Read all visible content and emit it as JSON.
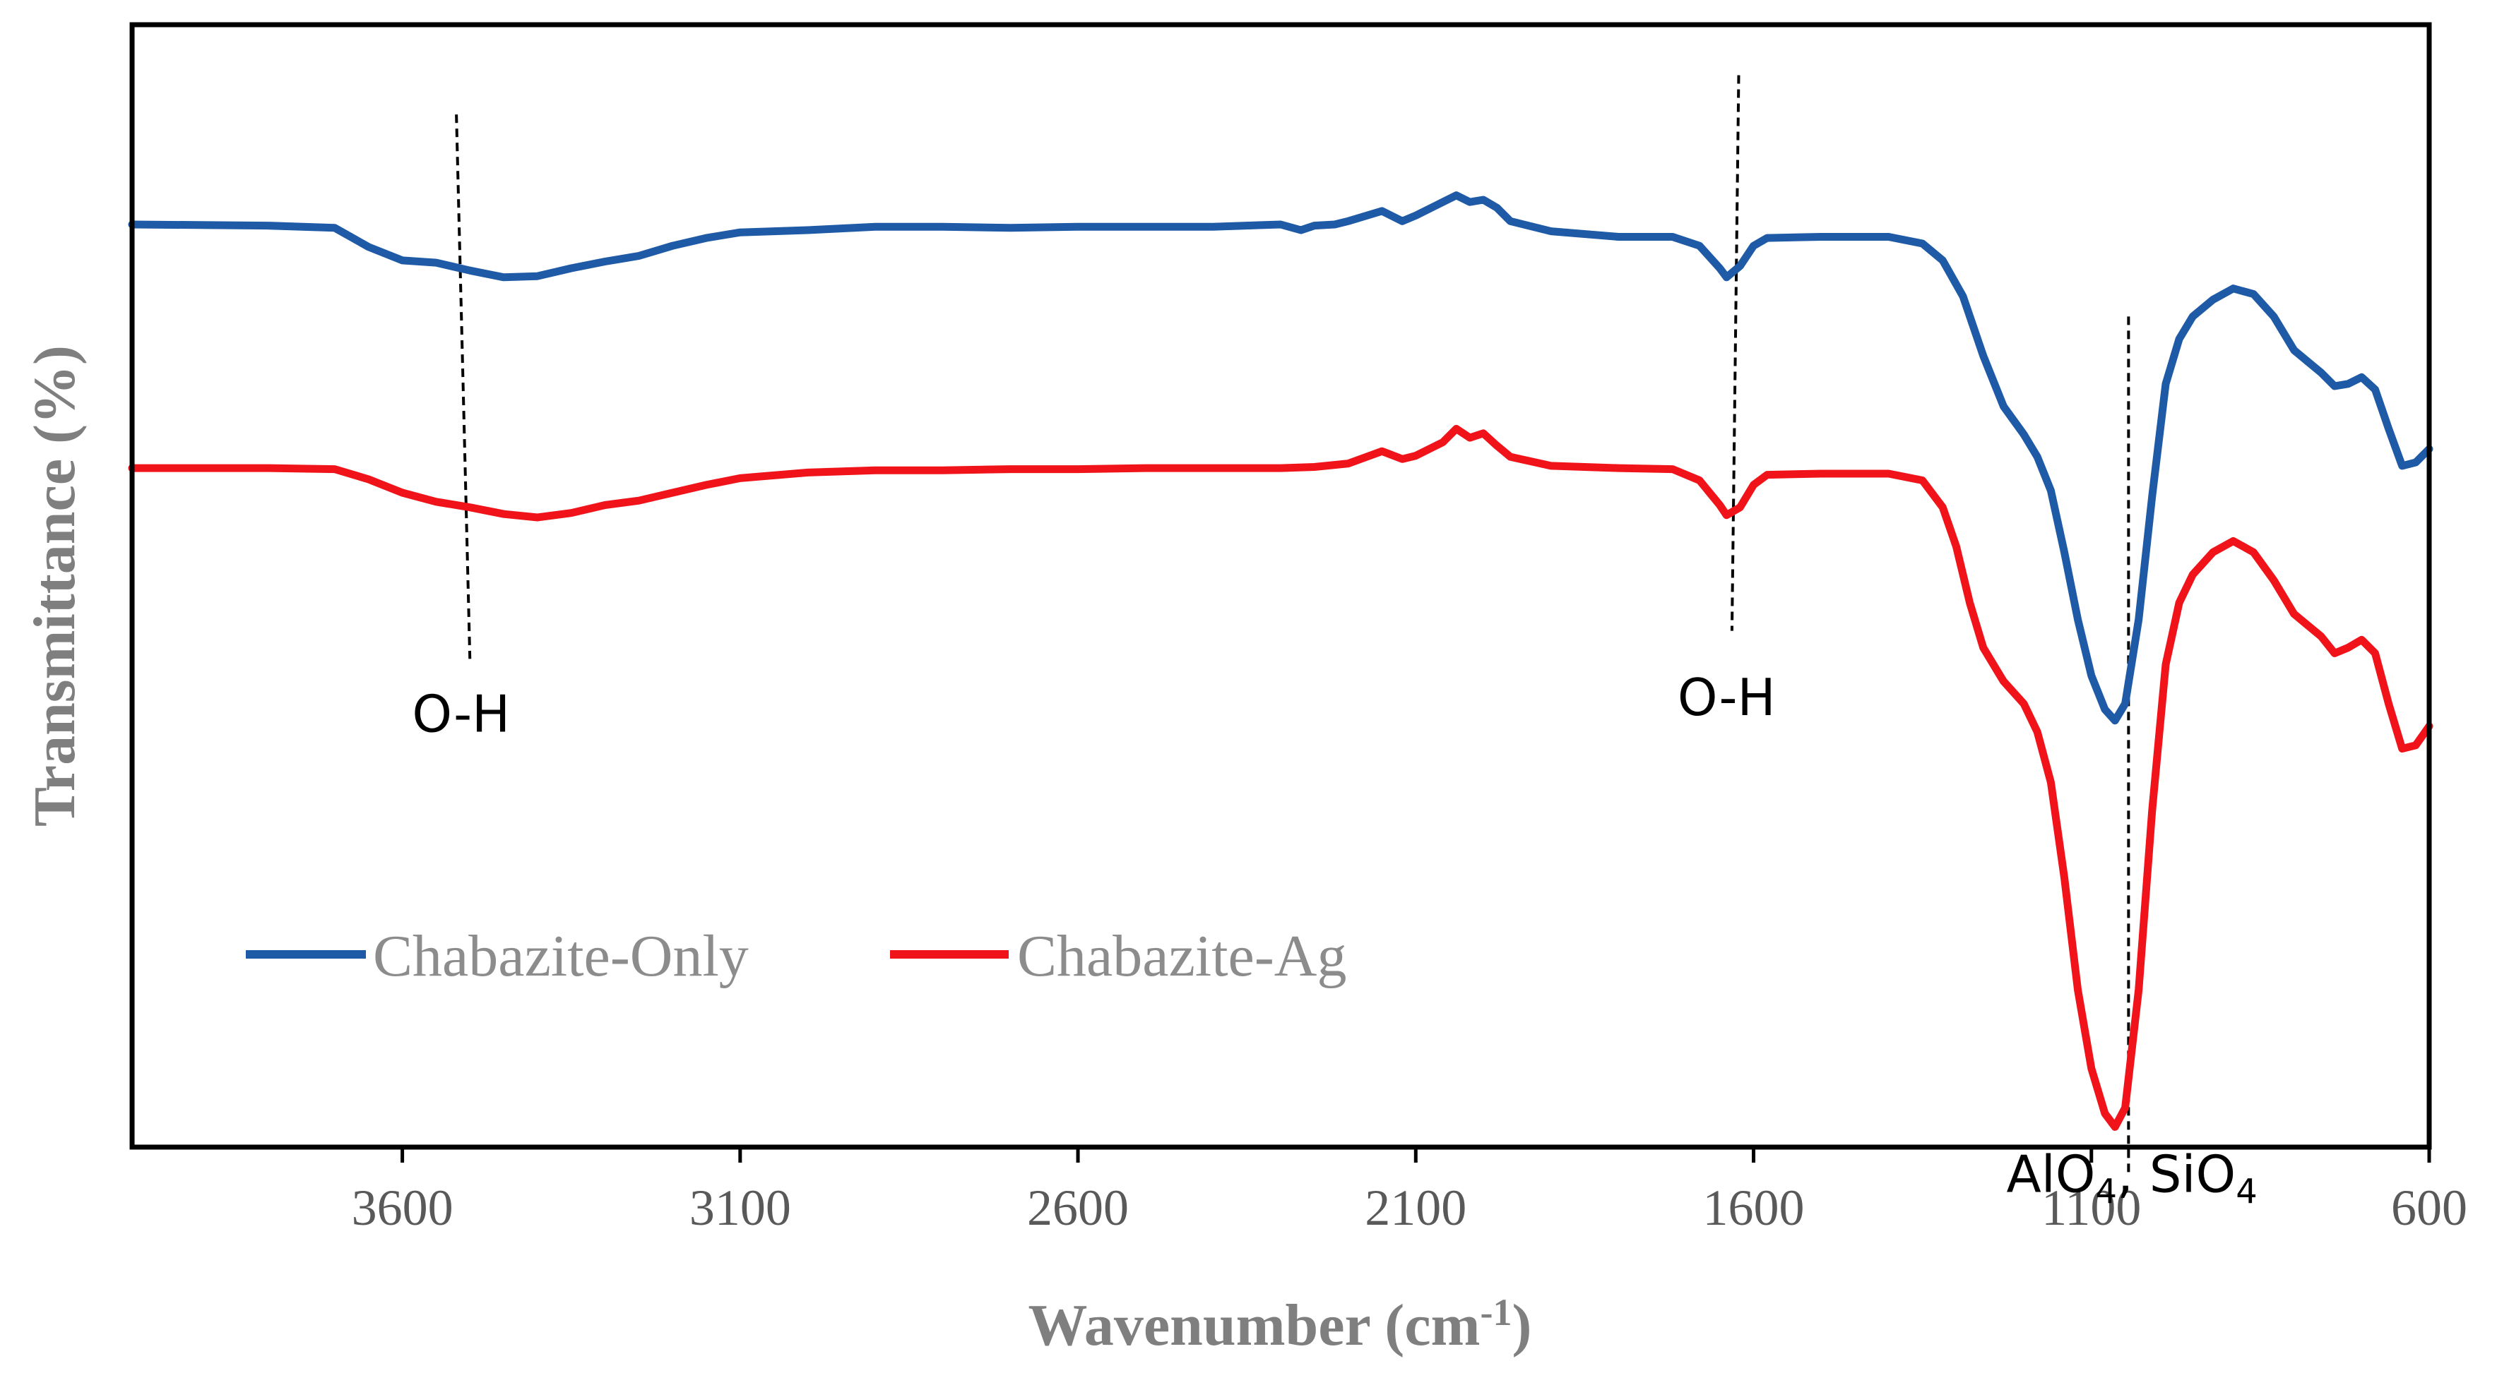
{
  "chart_data": {
    "type": "line",
    "title": "",
    "xlabel": "Wavenumber (cm",
    "xlabel_sup": "-1",
    "xlabel_end": ")",
    "ylabel": "Transmittance (%)",
    "xlim": [
      4000,
      600
    ],
    "x_reversed": true,
    "ylim": [
      0,
      100
    ],
    "y_ticks_shown": false,
    "x_ticks": [
      3600,
      3100,
      2600,
      2100,
      1600,
      1100,
      600
    ],
    "legend_position": "bottom-left",
    "series": [
      {
        "name": "Chabazite-Only",
        "color": "#1f5aa6",
        "points": [
          [
            4000,
            82.2
          ],
          [
            3800,
            82.1
          ],
          [
            3700,
            81.9
          ],
          [
            3650,
            80.2
          ],
          [
            3600,
            79.0
          ],
          [
            3550,
            78.8
          ],
          [
            3500,
            78.1
          ],
          [
            3450,
            77.5
          ],
          [
            3400,
            77.6
          ],
          [
            3350,
            78.3
          ],
          [
            3300,
            78.9
          ],
          [
            3250,
            79.4
          ],
          [
            3200,
            80.3
          ],
          [
            3150,
            81.0
          ],
          [
            3100,
            81.5
          ],
          [
            3000,
            81.7
          ],
          [
            2900,
            82.0
          ],
          [
            2800,
            82.0
          ],
          [
            2700,
            81.9
          ],
          [
            2600,
            82.0
          ],
          [
            2500,
            82.0
          ],
          [
            2400,
            82.0
          ],
          [
            2300,
            82.2
          ],
          [
            2270,
            81.7
          ],
          [
            2250,
            82.1
          ],
          [
            2220,
            82.2
          ],
          [
            2200,
            82.5
          ],
          [
            2150,
            83.4
          ],
          [
            2120,
            82.5
          ],
          [
            2100,
            83.0
          ],
          [
            2060,
            84.2
          ],
          [
            2040,
            84.8
          ],
          [
            2020,
            84.2
          ],
          [
            2000,
            84.4
          ],
          [
            1980,
            83.7
          ],
          [
            1960,
            82.5
          ],
          [
            1900,
            81.6
          ],
          [
            1800,
            81.1
          ],
          [
            1720,
            81.1
          ],
          [
            1680,
            80.3
          ],
          [
            1650,
            78.3
          ],
          [
            1640,
            77.5
          ],
          [
            1620,
            78.5
          ],
          [
            1600,
            80.3
          ],
          [
            1580,
            81.0
          ],
          [
            1500,
            81.1
          ],
          [
            1400,
            81.1
          ],
          [
            1350,
            80.5
          ],
          [
            1320,
            79.0
          ],
          [
            1290,
            75.8
          ],
          [
            1260,
            70.5
          ],
          [
            1230,
            66.0
          ],
          [
            1200,
            63.5
          ],
          [
            1180,
            61.5
          ],
          [
            1160,
            58.5
          ],
          [
            1140,
            53.0
          ],
          [
            1120,
            47.0
          ],
          [
            1100,
            42.0
          ],
          [
            1080,
            39.0
          ],
          [
            1065,
            38.0
          ],
          [
            1050,
            39.5
          ],
          [
            1030,
            47.0
          ],
          [
            1010,
            58.0
          ],
          [
            990,
            68.0
          ],
          [
            970,
            72.0
          ],
          [
            950,
            74.0
          ],
          [
            920,
            75.5
          ],
          [
            890,
            76.5
          ],
          [
            860,
            76.0
          ],
          [
            830,
            74.0
          ],
          [
            800,
            71.0
          ],
          [
            780,
            70.0
          ],
          [
            760,
            69.0
          ],
          [
            740,
            67.8
          ],
          [
            720,
            68.0
          ],
          [
            700,
            68.6
          ],
          [
            680,
            67.5
          ],
          [
            660,
            64.0
          ],
          [
            640,
            60.7
          ],
          [
            620,
            61.0
          ],
          [
            600,
            62.2
          ]
        ]
      },
      {
        "name": "Chabazite-Ag",
        "color": "#f0141a",
        "points": [
          [
            4000,
            60.5
          ],
          [
            3800,
            60.5
          ],
          [
            3700,
            60.4
          ],
          [
            3650,
            59.5
          ],
          [
            3600,
            58.3
          ],
          [
            3550,
            57.5
          ],
          [
            3500,
            57.0
          ],
          [
            3450,
            56.4
          ],
          [
            3400,
            56.1
          ],
          [
            3350,
            56.5
          ],
          [
            3300,
            57.2
          ],
          [
            3250,
            57.6
          ],
          [
            3200,
            58.3
          ],
          [
            3150,
            59.0
          ],
          [
            3100,
            59.6
          ],
          [
            3000,
            60.1
          ],
          [
            2900,
            60.3
          ],
          [
            2800,
            60.3
          ],
          [
            2700,
            60.4
          ],
          [
            2600,
            60.4
          ],
          [
            2500,
            60.5
          ],
          [
            2400,
            60.5
          ],
          [
            2300,
            60.5
          ],
          [
            2250,
            60.6
          ],
          [
            2200,
            60.9
          ],
          [
            2150,
            62.0
          ],
          [
            2120,
            61.3
          ],
          [
            2100,
            61.6
          ],
          [
            2060,
            62.8
          ],
          [
            2040,
            64.0
          ],
          [
            2020,
            63.2
          ],
          [
            2000,
            63.6
          ],
          [
            1980,
            62.5
          ],
          [
            1960,
            61.5
          ],
          [
            1900,
            60.7
          ],
          [
            1800,
            60.5
          ],
          [
            1720,
            60.4
          ],
          [
            1680,
            59.4
          ],
          [
            1650,
            57.2
          ],
          [
            1640,
            56.3
          ],
          [
            1620,
            57.0
          ],
          [
            1600,
            59.0
          ],
          [
            1580,
            59.9
          ],
          [
            1500,
            60.0
          ],
          [
            1400,
            60.0
          ],
          [
            1350,
            59.4
          ],
          [
            1320,
            57.0
          ],
          [
            1300,
            53.5
          ],
          [
            1280,
            48.5
          ],
          [
            1260,
            44.5
          ],
          [
            1230,
            41.5
          ],
          [
            1200,
            39.5
          ],
          [
            1180,
            37.0
          ],
          [
            1160,
            32.5
          ],
          [
            1140,
            24.0
          ],
          [
            1120,
            14.0
          ],
          [
            1100,
            7.0
          ],
          [
            1080,
            3.0
          ],
          [
            1065,
            1.8
          ],
          [
            1050,
            3.5
          ],
          [
            1030,
            14.0
          ],
          [
            1010,
            30.0
          ],
          [
            990,
            43.0
          ],
          [
            970,
            48.5
          ],
          [
            950,
            51.0
          ],
          [
            920,
            53.0
          ],
          [
            890,
            54.0
          ],
          [
            860,
            53.0
          ],
          [
            830,
            50.5
          ],
          [
            800,
            47.5
          ],
          [
            780,
            46.5
          ],
          [
            760,
            45.5
          ],
          [
            740,
            44.0
          ],
          [
            720,
            44.5
          ],
          [
            700,
            45.2
          ],
          [
            680,
            44.0
          ],
          [
            660,
            39.5
          ],
          [
            640,
            35.5
          ],
          [
            620,
            35.8
          ],
          [
            600,
            37.5
          ]
        ]
      }
    ],
    "reference_lines": [
      {
        "x_top": 3520,
        "x_bottom": 3500,
        "y_top": 92.0,
        "y_bottom": 43.5
      },
      {
        "x_top": 1622,
        "x_bottom": 1632,
        "y_top": 95.5,
        "y_bottom": 46.0
      },
      {
        "x_top": 1045,
        "x_bottom": 1045,
        "y_top": 74.0,
        "y_bottom": -2.5
      }
    ],
    "annotations": [
      {
        "label": "O-H",
        "x": 3513,
        "y": 37.0
      },
      {
        "label": "O-H",
        "x": 1640,
        "y": 38.5
      },
      {
        "label_parts": [
          "AlO",
          "4",
          ", SiO",
          "4"
        ],
        "x": 1040,
        "y": -4.0
      }
    ]
  }
}
